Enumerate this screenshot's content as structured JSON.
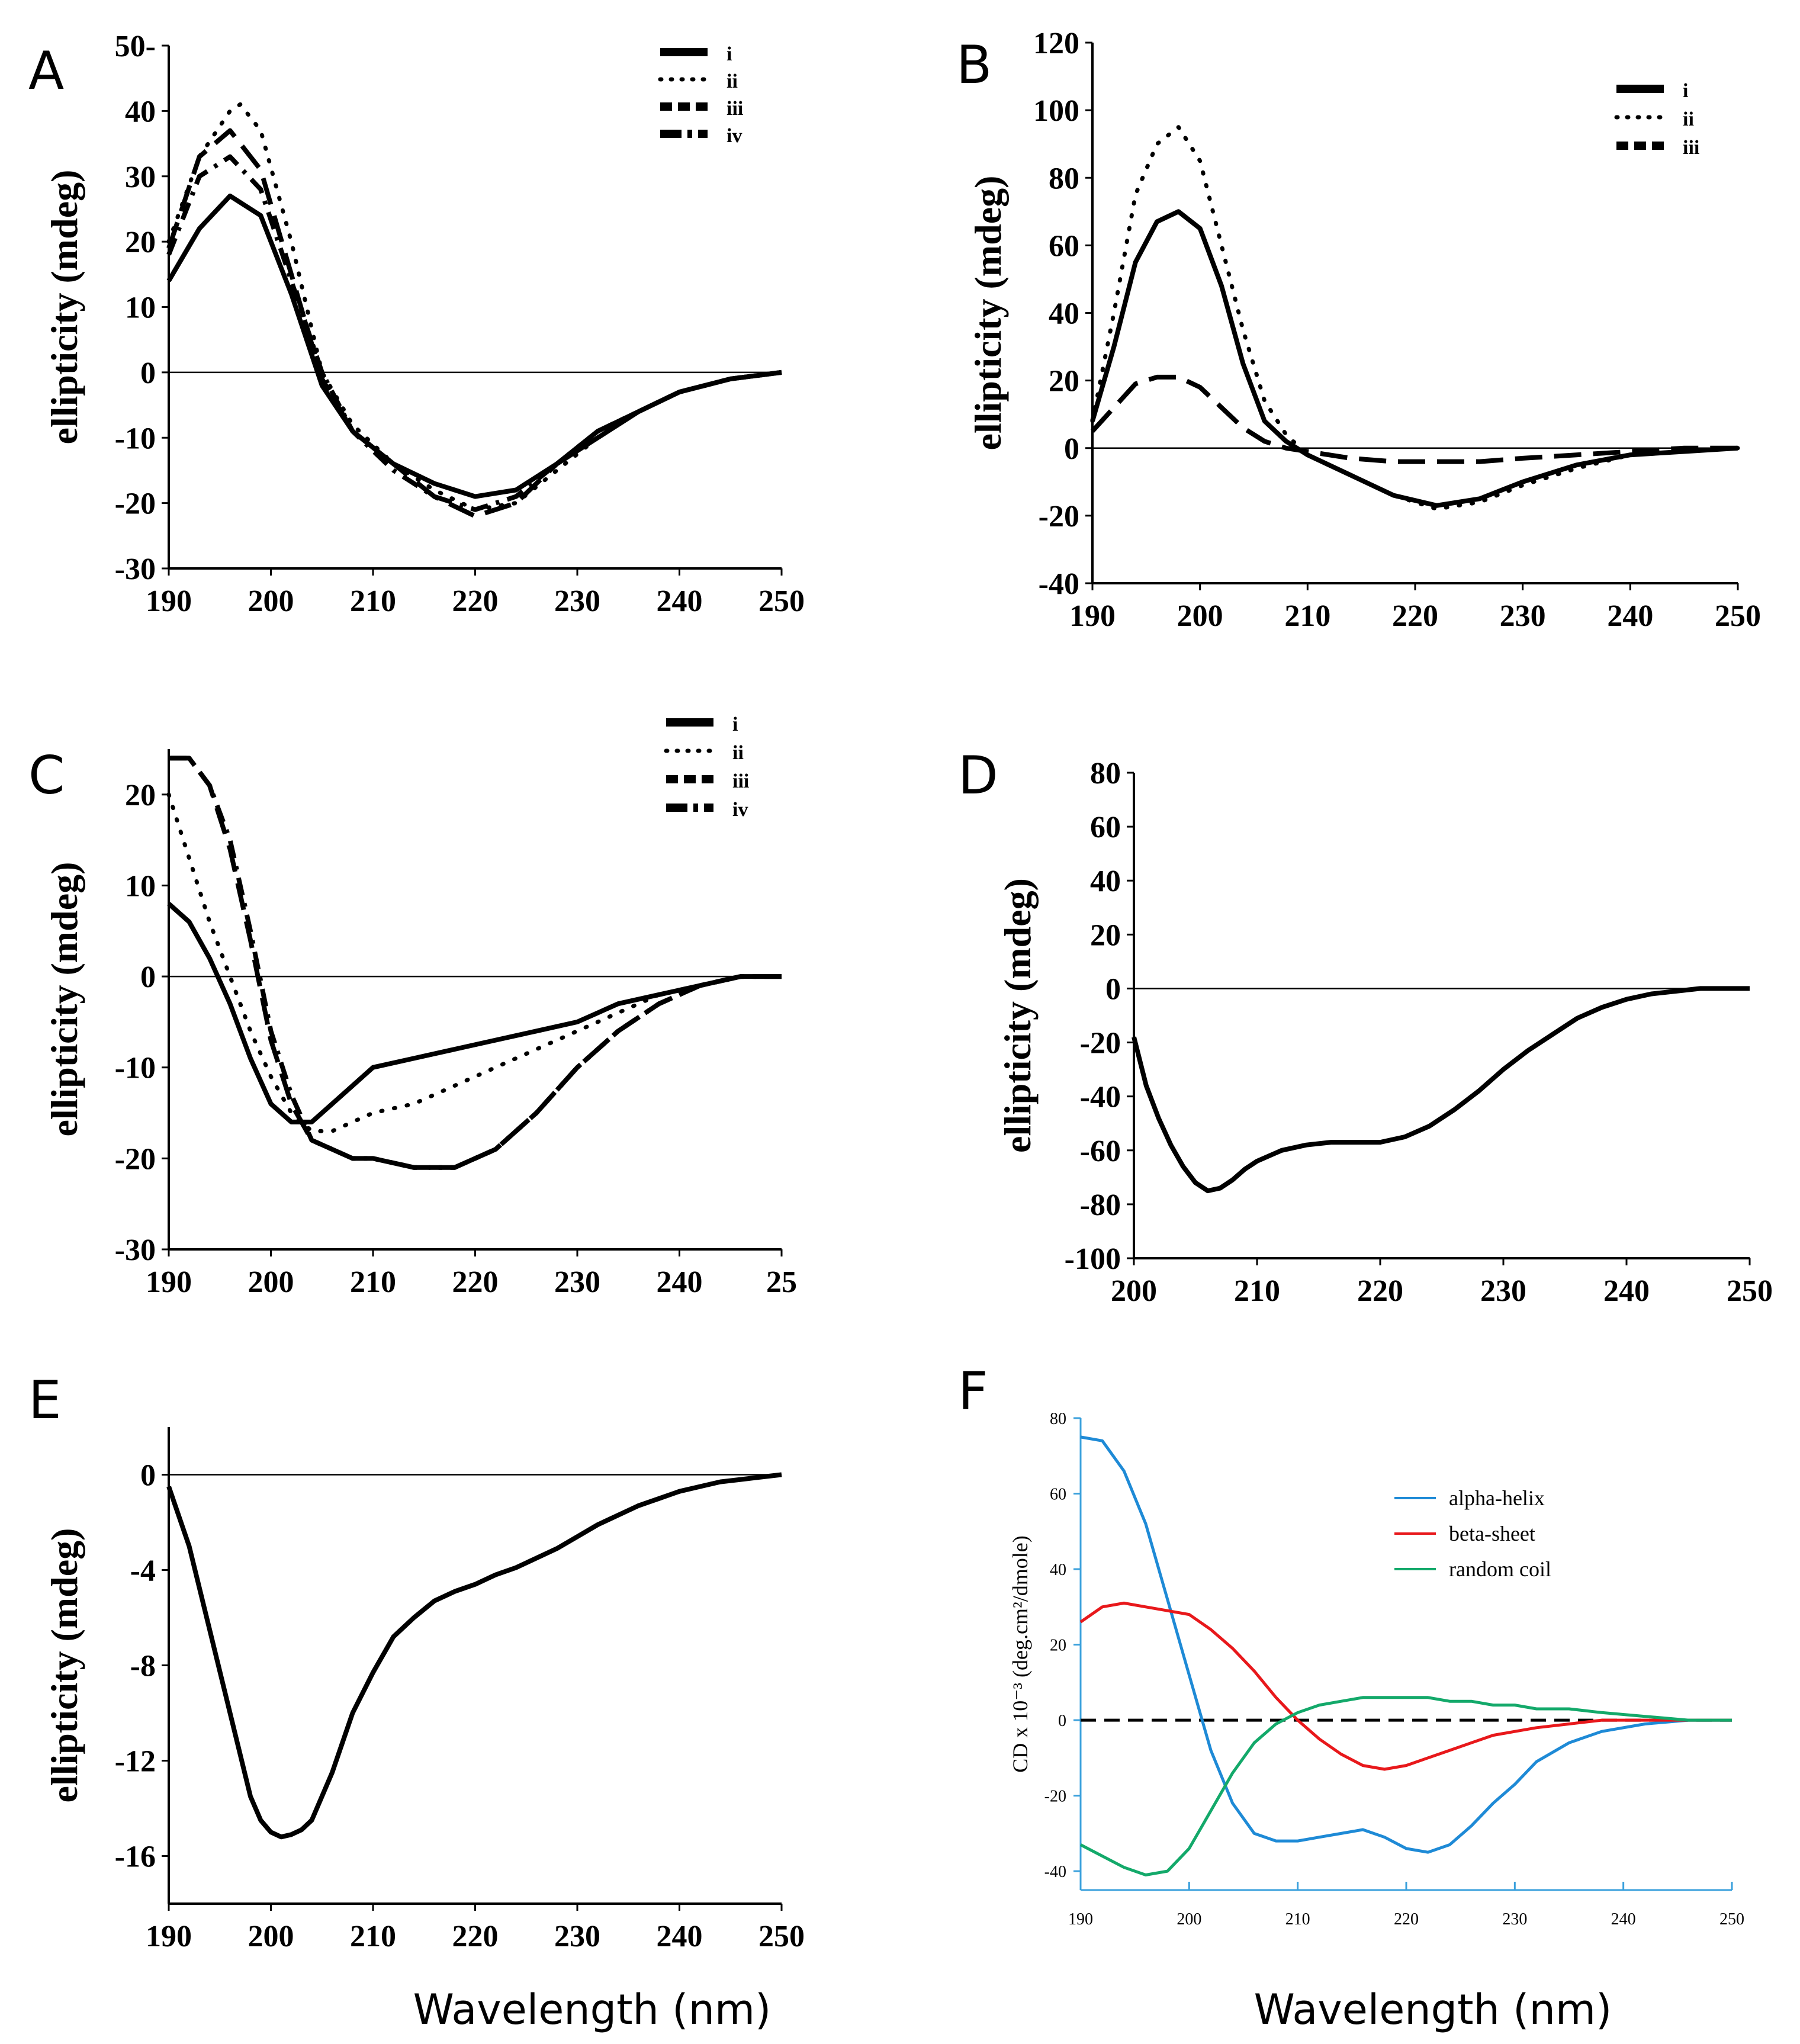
{
  "x_axis_label": "Wavelength (nm)",
  "chart_data": [
    {
      "panel": "A",
      "type": "line",
      "ylabel": "ellipticity (mdeg)",
      "xlabel": "",
      "xlim": [
        190,
        250
      ],
      "ylim": [
        -30,
        50
      ],
      "xticks": [
        "190",
        "200",
        "210",
        "220",
        "230",
        "240",
        "250"
      ],
      "yticks": [
        "-30",
        "-20",
        "-10",
        "0",
        "10",
        "20",
        "30",
        "40",
        "50-"
      ],
      "ytick_values": [
        -30,
        -20,
        -10,
        0,
        10,
        20,
        30,
        40,
        50
      ],
      "legend": [
        "i",
        "ii",
        "iii",
        "iv"
      ],
      "series": [
        {
          "name": "i",
          "style": "solid",
          "x": [
            190,
            193,
            196,
            199,
            202,
            205,
            208,
            212,
            216,
            220,
            224,
            228,
            232,
            236,
            240,
            245,
            250
          ],
          "y": [
            14,
            22,
            27,
            24,
            12,
            -2,
            -9,
            -14,
            -17,
            -19,
            -18,
            -14,
            -10,
            -6,
            -3,
            -1,
            0
          ]
        },
        {
          "name": "ii",
          "style": "dotted",
          "x": [
            190,
            193,
            196,
            197,
            199,
            202,
            205,
            208,
            212,
            216,
            220,
            224,
            228,
            232,
            236,
            240,
            245,
            250
          ],
          "y": [
            20,
            33,
            40,
            41,
            37,
            20,
            0,
            -8,
            -14,
            -18,
            -21,
            -20,
            -15,
            -10,
            -6,
            -3,
            -1,
            0
          ]
        },
        {
          "name": "iii",
          "style": "dashed",
          "x": [
            190,
            193,
            196,
            199,
            202,
            205,
            208,
            212,
            216,
            220,
            224,
            228,
            232,
            236,
            240,
            245,
            250
          ],
          "y": [
            19,
            33,
            37,
            31,
            15,
            -1,
            -9,
            -14,
            -19,
            -22,
            -20,
            -14,
            -9,
            -6,
            -3,
            -1,
            0
          ]
        },
        {
          "name": "iv",
          "style": "dashdot",
          "x": [
            190,
            193,
            196,
            199,
            202,
            205,
            208,
            212,
            216,
            220,
            224,
            228,
            232,
            236,
            240,
            245,
            250
          ],
          "y": [
            18,
            30,
            33,
            28,
            14,
            0,
            -9,
            -15,
            -19,
            -21,
            -19,
            -14,
            -9,
            -6,
            -3,
            -1,
            0
          ]
        }
      ]
    },
    {
      "panel": "B",
      "type": "line",
      "ylabel": "ellipticity (mdeg)",
      "xlabel": "",
      "xlim": [
        190,
        250
      ],
      "ylim": [
        -40,
        120
      ],
      "xticks": [
        "190",
        "200",
        "210",
        "220",
        "230",
        "240",
        "250"
      ],
      "yticks": [
        "-40",
        "-20",
        "0",
        "20",
        "40",
        "60",
        "80",
        "100",
        "120"
      ],
      "ytick_values": [
        -40,
        -20,
        0,
        20,
        40,
        60,
        80,
        100,
        120
      ],
      "legend": [
        "i",
        "ii",
        "iii"
      ],
      "series": [
        {
          "name": "i",
          "style": "solid",
          "x": [
            190,
            192,
            194,
            196,
            198,
            200,
            202,
            204,
            206,
            208,
            210,
            214,
            218,
            222,
            226,
            230,
            235,
            240,
            245,
            250
          ],
          "y": [
            8,
            30,
            55,
            67,
            70,
            65,
            48,
            25,
            8,
            2,
            -2,
            -8,
            -14,
            -17,
            -15,
            -10,
            -5,
            -2,
            -1,
            0
          ]
        },
        {
          "name": "ii",
          "style": "dotted",
          "x": [
            190,
            192,
            194,
            196,
            198,
            200,
            202,
            204,
            206,
            208,
            210,
            214,
            218,
            222,
            226,
            230,
            235,
            240,
            245,
            250
          ],
          "y": [
            8,
            40,
            75,
            90,
            95,
            85,
            60,
            35,
            14,
            4,
            -2,
            -8,
            -14,
            -18,
            -16,
            -11,
            -6,
            -2,
            -1,
            0
          ]
        },
        {
          "name": "iii",
          "style": "dashed",
          "x": [
            190,
            192,
            194,
            196,
            198,
            200,
            202,
            204,
            206,
            208,
            210,
            214,
            218,
            222,
            226,
            230,
            235,
            240,
            245,
            250
          ],
          "y": [
            5,
            12,
            19,
            21,
            21,
            18,
            12,
            6,
            2,
            0,
            -1,
            -3,
            -4,
            -4,
            -4,
            -3,
            -2,
            -1,
            0,
            0
          ]
        }
      ]
    },
    {
      "panel": "C",
      "type": "line",
      "ylabel": "ellipticity (mdeg)",
      "xlabel": "",
      "xlim": [
        190,
        250
      ],
      "ylim": [
        -30,
        25
      ],
      "xticks": [
        "190",
        "200",
        "210",
        "220",
        "230",
        "240",
        "25"
      ],
      "yticks": [
        "-30",
        "-20",
        "-10",
        "0",
        "10",
        "20"
      ],
      "ytick_values": [
        -30,
        -20,
        -10,
        0,
        10,
        20
      ],
      "legend": [
        "i",
        "ii",
        "iii",
        "iv"
      ],
      "series": [
        {
          "name": "i",
          "style": "solid",
          "x": [
            190,
            192,
            194,
            196,
            198,
            200,
            202,
            204,
            206,
            208,
            210,
            214,
            218,
            222,
            226,
            230,
            234,
            238,
            242,
            246,
            250
          ],
          "y": [
            8,
            6,
            2,
            -3,
            -9,
            -14,
            -16,
            -16,
            -14,
            -12,
            -10,
            -9,
            -8,
            -7,
            -6,
            -5,
            -3,
            -2,
            -1,
            0,
            0
          ]
        },
        {
          "name": "ii",
          "style": "dotted",
          "x": [
            190,
            192,
            194,
            196,
            198,
            200,
            202,
            204,
            206,
            208,
            210,
            214,
            218,
            222,
            226,
            230,
            234,
            238,
            242,
            246,
            250
          ],
          "y": [
            20,
            13,
            6,
            0,
            -6,
            -11,
            -15,
            -17,
            -17,
            -16,
            -15,
            -14,
            -12,
            -10,
            -8,
            -6,
            -4,
            -2,
            -1,
            0,
            0
          ]
        },
        {
          "name": "iii",
          "style": "dashed",
          "x": [
            190,
            192,
            194,
            196,
            198,
            200,
            202,
            204,
            206,
            208,
            210,
            214,
            218,
            222,
            226,
            230,
            234,
            238,
            242,
            246,
            250
          ],
          "y": [
            24,
            24,
            21,
            14,
            4,
            -7,
            -14,
            -18,
            -19,
            -20,
            -20,
            -21,
            -21,
            -19,
            -15,
            -10,
            -6,
            -3,
            -1,
            0,
            0
          ]
        },
        {
          "name": "iv",
          "style": "dashdot",
          "x": [
            190,
            192,
            194,
            196,
            198,
            200,
            202,
            204,
            206,
            208,
            210,
            214,
            218,
            222,
            226,
            230,
            234,
            238,
            242,
            246,
            250
          ],
          "y": [
            24,
            24,
            21,
            15,
            5,
            -6,
            -13,
            -18,
            -19,
            -20,
            -20,
            -21,
            -21,
            -19,
            -15,
            -10,
            -6,
            -3,
            -1,
            0,
            0
          ]
        }
      ]
    },
    {
      "panel": "D",
      "type": "line",
      "ylabel": "ellipticity (mdeg)",
      "xlabel": "",
      "xlim": [
        200,
        250
      ],
      "ylim": [
        -100,
        80
      ],
      "xticks": [
        "200",
        "210",
        "220",
        "230",
        "240",
        "250"
      ],
      "yticks": [
        "-100",
        "-80",
        "-60",
        "-40",
        "-20",
        "0",
        "20",
        "40",
        "60",
        "80"
      ],
      "ytick_values": [
        -100,
        -80,
        -60,
        -40,
        -20,
        0,
        20,
        40,
        60,
        80
      ],
      "series": [
        {
          "name": "D",
          "style": "solid",
          "x": [
            200,
            201,
            202,
            203,
            204,
            205,
            206,
            207,
            208,
            209,
            210,
            212,
            214,
            216,
            218,
            220,
            222,
            224,
            226,
            228,
            230,
            232,
            234,
            236,
            238,
            240,
            242,
            244,
            246,
            248,
            250
          ],
          "y": [
            -18,
            -36,
            -48,
            -58,
            -66,
            -72,
            -75,
            -74,
            -71,
            -67,
            -64,
            -60,
            -58,
            -57,
            -57,
            -57,
            -55,
            -51,
            -45,
            -38,
            -30,
            -23,
            -17,
            -11,
            -7,
            -4,
            -2,
            -1,
            0,
            0,
            0
          ]
        }
      ]
    },
    {
      "panel": "E",
      "type": "line",
      "ylabel": "ellipticity (mdeg)",
      "xlabel": "",
      "xlim": [
        190,
        250
      ],
      "ylim": [
        -18,
        2
      ],
      "xticks": [
        "190",
        "200",
        "210",
        "220",
        "230",
        "240",
        "250"
      ],
      "yticks": [
        "-16",
        "-12",
        "-8",
        "-4",
        "0"
      ],
      "ytick_values": [
        -16,
        -12,
        -8,
        -4,
        0
      ],
      "series": [
        {
          "name": "E",
          "style": "solid",
          "x": [
            190,
            192,
            194,
            196,
            198,
            199,
            200,
            201,
            202,
            203,
            204,
            206,
            208,
            210,
            212,
            214,
            216,
            218,
            220,
            222,
            224,
            226,
            228,
            230,
            232,
            234,
            236,
            238,
            240,
            242,
            244,
            246,
            248,
            250
          ],
          "y": [
            -0.5,
            -3,
            -6.5,
            -10,
            -13.5,
            -14.5,
            -15,
            -15.2,
            -15.1,
            -14.9,
            -14.5,
            -12.5,
            -10,
            -8.3,
            -6.8,
            -6,
            -5.3,
            -4.9,
            -4.6,
            -4.2,
            -3.9,
            -3.5,
            -3.1,
            -2.6,
            -2.1,
            -1.7,
            -1.3,
            -1,
            -0.7,
            -0.5,
            -0.3,
            -0.2,
            -0.1,
            0
          ]
        }
      ]
    },
    {
      "panel": "F",
      "type": "line",
      "ylabel": "CD x 10⁻³ (deg.cm²/dmole)",
      "xlabel": "",
      "xlim": [
        190,
        250
      ],
      "ylim": [
        -45,
        80
      ],
      "xticks": [
        "190",
        "200",
        "210",
        "220",
        "230",
        "240",
        "250"
      ],
      "yticks": [
        "-40",
        "-20",
        "0",
        "20",
        "40",
        "60",
        "80"
      ],
      "ytick_values": [
        -40,
        -20,
        0,
        20,
        40,
        60,
        80
      ],
      "zero_line": "dashed",
      "series": [
        {
          "name": "alpha-helix",
          "color": "#1e8ad6",
          "x": [
            190,
            192,
            194,
            196,
            198,
            200,
            202,
            204,
            206,
            208,
            210,
            212,
            214,
            216,
            218,
            220,
            222,
            224,
            226,
            228,
            230,
            232,
            235,
            238,
            242,
            246,
            250
          ],
          "y": [
            75,
            74,
            66,
            52,
            32,
            12,
            -8,
            -22,
            -30,
            -32,
            -32,
            -31,
            -30,
            -29,
            -31,
            -34,
            -35,
            -33,
            -28,
            -22,
            -17,
            -11,
            -6,
            -3,
            -1,
            0,
            0
          ]
        },
        {
          "name": "beta-sheet",
          "color": "#e8181b",
          "x": [
            190,
            192,
            194,
            196,
            198,
            200,
            202,
            204,
            206,
            208,
            210,
            212,
            214,
            216,
            218,
            220,
            222,
            224,
            226,
            228,
            230,
            232,
            235,
            238,
            242,
            246,
            250
          ],
          "y": [
            26,
            30,
            31,
            30,
            29,
            28,
            24,
            19,
            13,
            6,
            0,
            -5,
            -9,
            -12,
            -13,
            -12,
            -10,
            -8,
            -6,
            -4,
            -3,
            -2,
            -1,
            0,
            0,
            0,
            0
          ]
        },
        {
          "name": "random coil",
          "color": "#13a96a",
          "x": [
            190,
            192,
            194,
            196,
            198,
            200,
            202,
            204,
            206,
            208,
            210,
            212,
            214,
            216,
            218,
            220,
            222,
            224,
            226,
            228,
            230,
            232,
            235,
            238,
            242,
            246,
            250
          ],
          "y": [
            -33,
            -36,
            -39,
            -41,
            -40,
            -34,
            -24,
            -14,
            -6,
            -1,
            2,
            4,
            5,
            6,
            6,
            6,
            6,
            5,
            5,
            4,
            4,
            3,
            3,
            2,
            1,
            0,
            0
          ]
        }
      ]
    }
  ]
}
